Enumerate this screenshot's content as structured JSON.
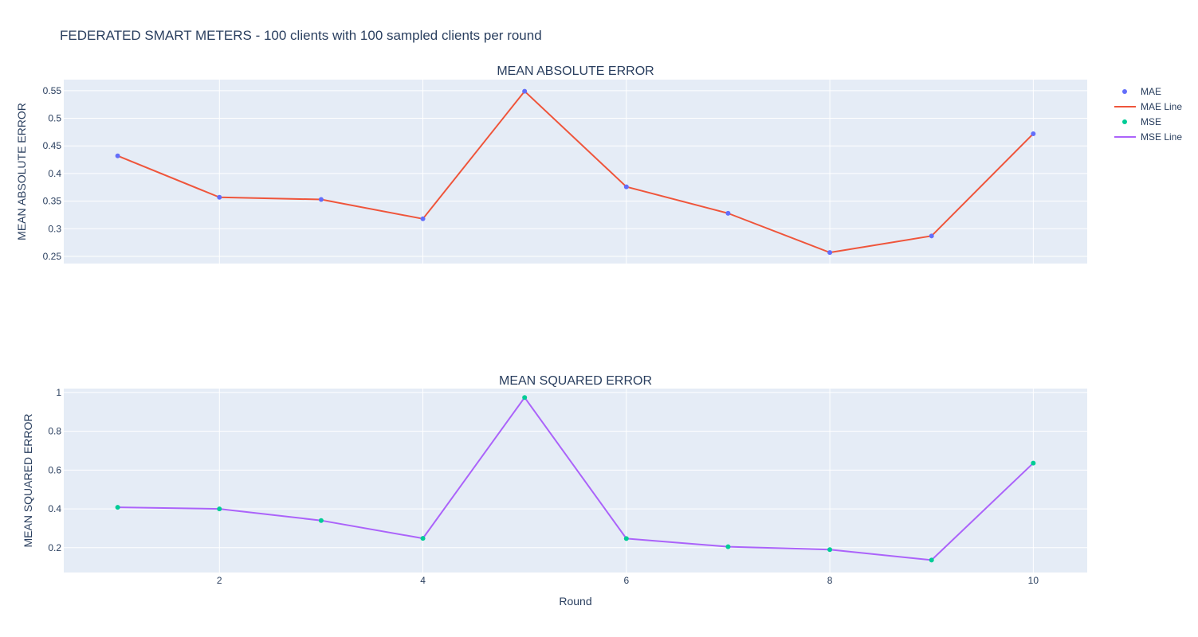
{
  "chart_data": [
    {
      "type": "line",
      "title": "MEAN ABSOLUTE ERROR",
      "ylabel": "MEAN ABSOLUTE ERROR",
      "xlabel": "",
      "x": [
        1,
        2,
        3,
        4,
        5,
        6,
        7,
        8,
        9,
        10
      ],
      "series": [
        {
          "name": "MAE",
          "mode": "markers",
          "color": "#636efa",
          "values": [
            0.432,
            0.357,
            0.353,
            0.318,
            0.549,
            0.376,
            0.328,
            0.257,
            0.287,
            0.472
          ]
        },
        {
          "name": "MAE Line",
          "mode": "lines",
          "color": "#ef553b",
          "values": [
            0.432,
            0.357,
            0.353,
            0.318,
            0.549,
            0.376,
            0.328,
            0.257,
            0.287,
            0.472
          ]
        }
      ],
      "xlim": [
        0.47,
        10.53
      ],
      "ylim": [
        0.237,
        0.57
      ],
      "xticks": [
        2,
        4,
        6,
        8,
        10
      ],
      "xtick_labels_shown": false,
      "yticks": [
        0.25,
        0.3,
        0.35,
        0.4,
        0.45,
        0.5,
        0.55
      ],
      "ytick_labels": [
        "0.25",
        "0.3",
        "0.35",
        "0.4",
        "0.45",
        "0.5",
        "0.55"
      ],
      "grid": true
    },
    {
      "type": "line",
      "title": "MEAN SQUARED ERROR",
      "ylabel": "MEAN SQUARED ERROR",
      "xlabel": "Round",
      "x": [
        1,
        2,
        3,
        4,
        5,
        6,
        7,
        8,
        9,
        10
      ],
      "series": [
        {
          "name": "MSE",
          "mode": "markers",
          "color": "#00cc96",
          "values": [
            0.408,
            0.4,
            0.34,
            0.248,
            0.974,
            0.247,
            0.205,
            0.19,
            0.136,
            0.636
          ]
        },
        {
          "name": "MSE Line",
          "mode": "lines",
          "color": "#ab63fa",
          "values": [
            0.408,
            0.4,
            0.34,
            0.248,
            0.974,
            0.247,
            0.205,
            0.19,
            0.136,
            0.636
          ]
        }
      ],
      "xlim": [
        0.47,
        10.53
      ],
      "ylim": [
        0.072,
        1.02
      ],
      "xticks": [
        2,
        4,
        6,
        8,
        10
      ],
      "xtick_labels": [
        "2",
        "4",
        "6",
        "8",
        "10"
      ],
      "yticks": [
        0.2,
        0.4,
        0.6,
        0.8,
        1
      ],
      "ytick_labels": [
        "0.2",
        "0.4",
        "0.6",
        "0.8",
        "1"
      ],
      "grid": true
    }
  ],
  "figure": {
    "title": "FEDERATED SMART METERS - 100 clients with 100 sampled clients per round",
    "plot_bg": "#e5ecf6",
    "grid_color": "#ffffff",
    "text_color": "#2a3f5f"
  },
  "legend": {
    "placement": "top-right",
    "items": [
      {
        "label": "MAE",
        "kind": "marker",
        "color": "#636efa"
      },
      {
        "label": "MAE Line",
        "kind": "line",
        "color": "#ef553b"
      },
      {
        "label": "MSE",
        "kind": "marker",
        "color": "#00cc96"
      },
      {
        "label": "MSE Line",
        "kind": "line",
        "color": "#ab63fa"
      }
    ]
  }
}
